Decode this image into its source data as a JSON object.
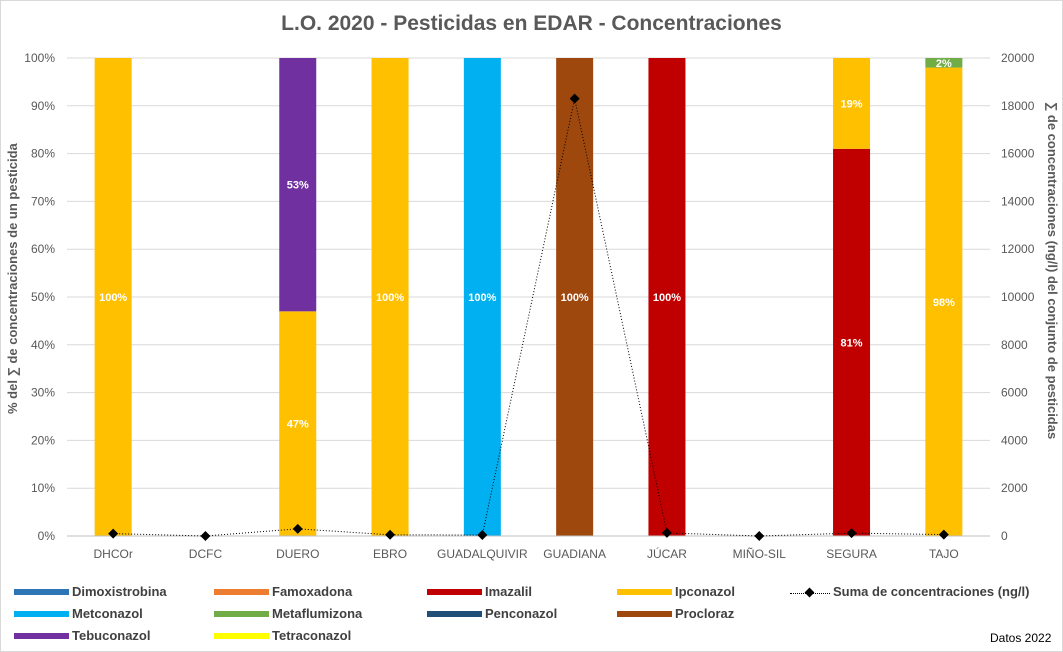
{
  "chart_data": {
    "type": "bar",
    "stacked": true,
    "title": "L.O. 2020 - Pesticidas en EDAR - Concentraciones",
    "ylabel": "% del ∑ de concentraciones de un pesticida",
    "y2label": "∑ de concentraciones (ng/l) del conjunto de pesticidas",
    "ylim": [
      0,
      100
    ],
    "y2lim": [
      0,
      20000
    ],
    "yticks": [
      "0%",
      "10%",
      "20%",
      "30%",
      "40%",
      "50%",
      "60%",
      "70%",
      "80%",
      "90%",
      "100%"
    ],
    "y2ticks": [
      "0",
      "2000",
      "4000",
      "6000",
      "8000",
      "10000",
      "12000",
      "14000",
      "16000",
      "18000",
      "20000"
    ],
    "categories": [
      "DHCOr",
      "DCFC",
      "DUERO",
      "EBRO",
      "GUADALQUIVIR",
      "GUADIANA",
      "JÚCAR",
      "MIÑO-SIL",
      "SEGURA",
      "TAJO"
    ],
    "series": [
      {
        "name": "Dimoxistrobina",
        "color": "#2e75b6",
        "values": [
          0,
          0,
          0,
          0,
          0,
          0,
          0,
          0,
          0,
          0
        ],
        "labels": [
          "",
          "",
          "",
          "",
          "",
          "",
          "",
          "",
          "",
          ""
        ]
      },
      {
        "name": "Famoxadona",
        "color": "#ed7d31",
        "values": [
          0,
          0,
          0,
          0,
          0,
          0,
          0,
          0,
          0,
          0
        ],
        "labels": [
          "",
          "",
          "",
          "",
          "",
          "",
          "",
          "",
          "",
          ""
        ]
      },
      {
        "name": "Imazalil",
        "color": "#c00000",
        "values": [
          0,
          0,
          0,
          0,
          0,
          0,
          100,
          0,
          81,
          0
        ],
        "labels": [
          "",
          "",
          "",
          "",
          "",
          "",
          "100%",
          "",
          "81%",
          ""
        ]
      },
      {
        "name": "Ipconazol",
        "color": "#ffc000",
        "values": [
          100,
          0,
          47,
          100,
          0,
          0,
          0,
          0,
          19,
          98
        ],
        "labels": [
          "100%",
          "",
          "47%",
          "100%",
          "",
          "",
          "",
          "",
          "19%",
          "98%"
        ]
      },
      {
        "name": "Metconazol",
        "color": "#00b0f0",
        "values": [
          0,
          0,
          0,
          0,
          100,
          0,
          0,
          0,
          0,
          0
        ],
        "labels": [
          "",
          "",
          "",
          "",
          "100%",
          "",
          "",
          "",
          "",
          ""
        ]
      },
      {
        "name": "Metaflumizona",
        "color": "#70ad47",
        "values": [
          0,
          0,
          0,
          0,
          0,
          0,
          0,
          0,
          0,
          2
        ],
        "labels": [
          "",
          "",
          "",
          "",
          "",
          "",
          "",
          "",
          "",
          "2%"
        ]
      },
      {
        "name": "Penconazol",
        "color": "#1f4e79",
        "values": [
          0,
          0,
          0,
          0,
          0,
          0,
          0,
          0,
          0,
          0
        ],
        "labels": [
          "",
          "",
          "",
          "",
          "",
          "",
          "",
          "",
          "",
          ""
        ]
      },
      {
        "name": "Procloraz",
        "color": "#9e480e",
        "values": [
          0,
          0,
          0,
          0,
          0,
          100,
          0,
          0,
          0,
          0
        ],
        "labels": [
          "",
          "",
          "",
          "",
          "",
          "100%",
          "",
          "",
          "",
          ""
        ]
      },
      {
        "name": "Tebuconazol",
        "color": "#7030a0",
        "values": [
          0,
          0,
          53,
          0,
          0,
          0,
          0,
          0,
          0,
          0
        ],
        "labels": [
          "",
          "",
          "53%",
          "",
          "",
          "",
          "",
          "",
          "",
          ""
        ]
      },
      {
        "name": "Tetraconazol",
        "color": "#ffff00",
        "values": [
          0,
          0,
          0,
          0,
          0,
          0,
          0,
          0,
          0,
          0
        ],
        "labels": [
          "",
          "",
          "",
          "",
          "",
          "",
          "",
          "",
          "",
          ""
        ]
      }
    ],
    "line_series": {
      "name": "Suma de concentraciones (ng/l)",
      "axis": "secondary",
      "values": [
        100,
        0,
        300,
        50,
        40,
        18300,
        130,
        0,
        120,
        60
      ]
    }
  },
  "legend": {
    "row1": [
      "Dimoxistrobina",
      "Famoxadona",
      "Imazalil",
      "Ipconazol",
      "Suma de concentraciones (ng/l)"
    ],
    "row2": [
      "Metconazol",
      "Metaflumizona",
      "Penconazol",
      "Procloraz"
    ],
    "row3": [
      "Tebuconazol",
      "Tetraconazol"
    ]
  },
  "footnote": "Datos 2022"
}
